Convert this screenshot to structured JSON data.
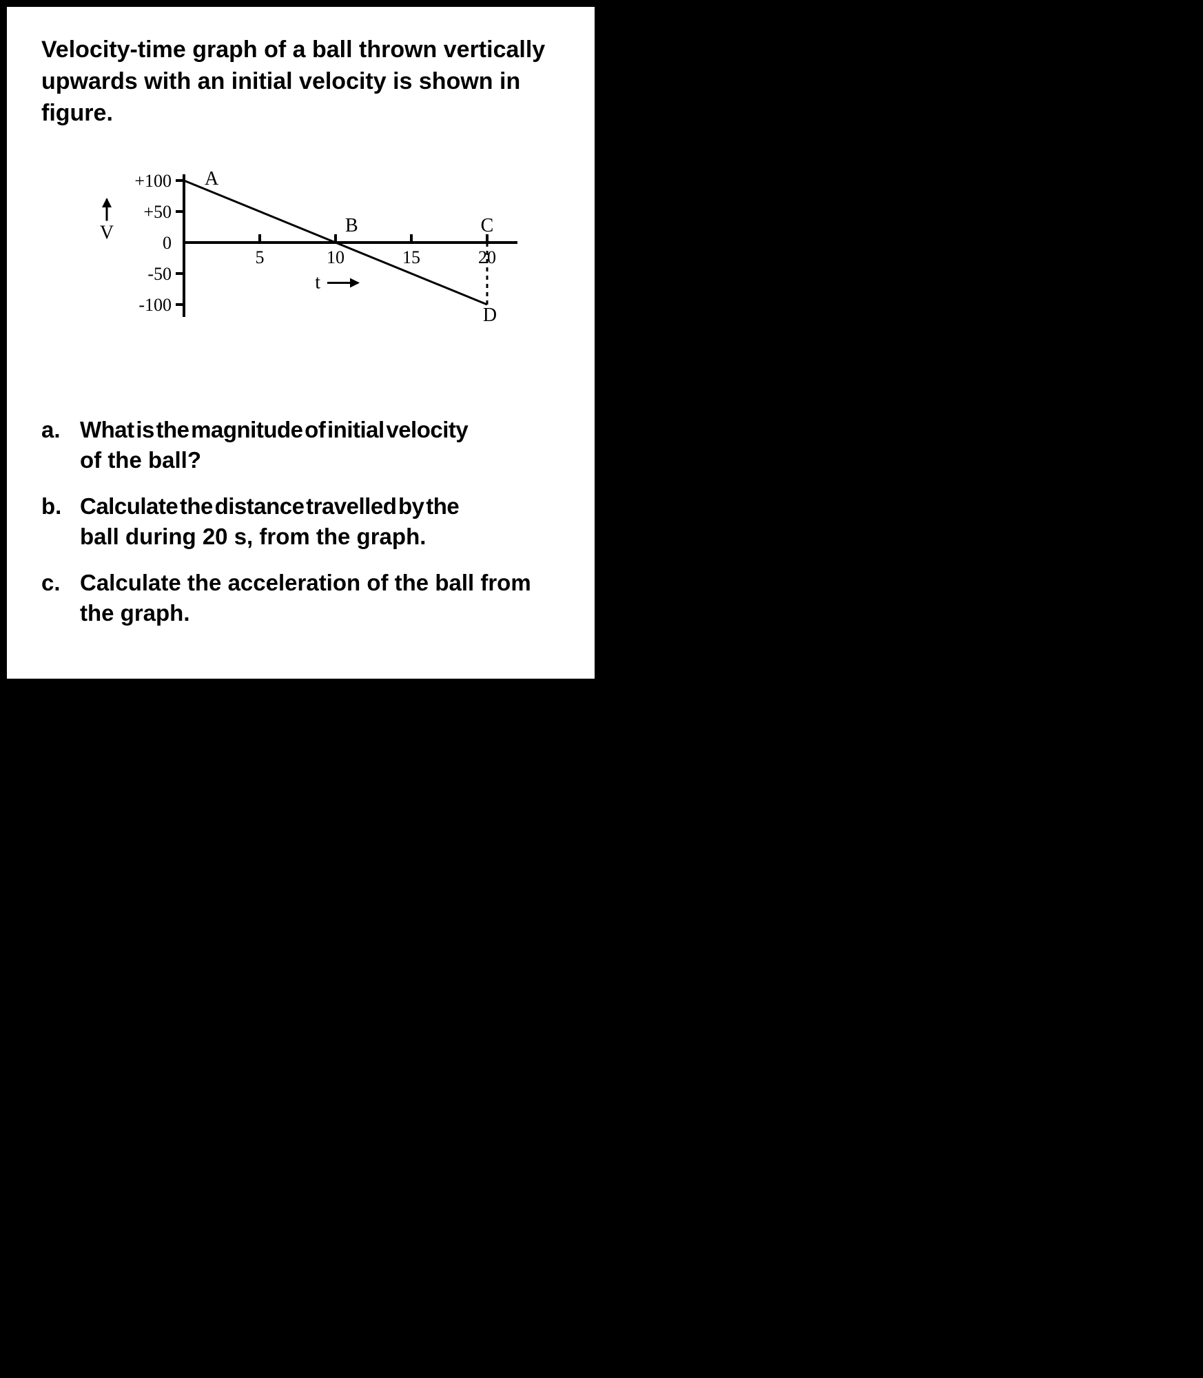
{
  "prompt": "Velocity-time graph of a ball thrown vertically upwards with an initial velocity is shown in figure.",
  "graph": {
    "type": "line",
    "font_family": "Times New Roman",
    "axis_color": "#000000",
    "line_color": "#000000",
    "y_axis": {
      "label": "V",
      "arrow": "up",
      "ticks": [
        {
          "value": 100,
          "label": "+100"
        },
        {
          "value": 50,
          "label": "+50"
        },
        {
          "value": 0,
          "label": "0"
        },
        {
          "value": -50,
          "label": "-50"
        },
        {
          "value": -100,
          "label": "-100"
        }
      ],
      "range": [
        -120,
        110
      ],
      "tick_fontsize": 26,
      "label_fontsize": 28
    },
    "x_axis": {
      "label": "t",
      "arrow": "right",
      "ticks": [
        {
          "value": 5,
          "label": "5"
        },
        {
          "value": 10,
          "label": "10"
        },
        {
          "value": 15,
          "label": "15"
        },
        {
          "value": 20,
          "label": "20"
        }
      ],
      "range": [
        0,
        22
      ],
      "tick_fontsize": 26,
      "label_fontsize": 28
    },
    "series": {
      "points": [
        {
          "t": 0,
          "v": 100,
          "label": "A",
          "label_pos": "above"
        },
        {
          "t": 10,
          "v": 0,
          "label": "B",
          "label_pos": "above-right"
        },
        {
          "t": 20,
          "v": -100,
          "label": "D",
          "label_pos": "below"
        }
      ],
      "line_width": 3
    },
    "extra_points": [
      {
        "t": 20,
        "v": 0,
        "label": "C",
        "label_pos": "above"
      }
    ],
    "dashed_segments": [
      {
        "from": {
          "t": 20,
          "v": 0
        },
        "to": {
          "t": 20,
          "v": -100
        },
        "dash": "6,6",
        "width": 3
      }
    ]
  },
  "questions": [
    {
      "marker": "a.",
      "text": "What is the magnitude of initial velocity of the ball?",
      "spacing": "tight-first"
    },
    {
      "marker": "b.",
      "text": "Calculate the distance travelled by the ball during 20 s, from the graph.",
      "spacing": "tight-first"
    },
    {
      "marker": "c.",
      "text": "Calculate the acceleration of the ball from the graph.",
      "spacing": "normal"
    }
  ]
}
